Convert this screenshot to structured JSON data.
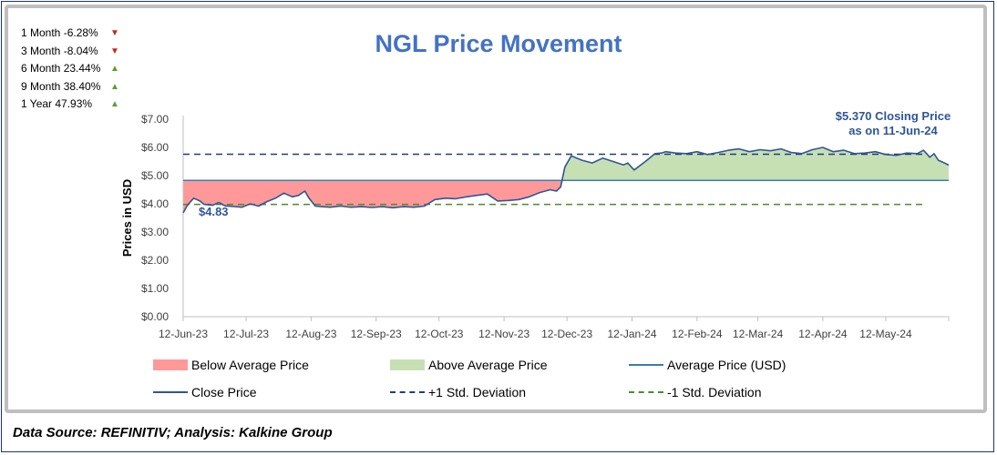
{
  "performance": [
    {
      "label": "1 Month -6.28%",
      "direction": "down"
    },
    {
      "label": "3 Month -8.04%",
      "direction": "down"
    },
    {
      "label": "6 Month 23.44%",
      "direction": "up"
    },
    {
      "label": "9 Month 38.40%",
      "direction": "up"
    },
    {
      "label": "1 Year 47.93%",
      "direction": "up"
    }
  ],
  "arrows": {
    "up": "▲",
    "down": "▼"
  },
  "source": "Data Source: REFINITIV; Analysis: Kalkine Group",
  "colors": {
    "title": "#4472c4",
    "close": "#2f5597",
    "average": "#3a7db5",
    "below": "#ff9999",
    "above": "#c6e0b4",
    "plus_sd": "#1f3e7a",
    "minus_sd": "#4f8a2a",
    "annotation": "#2f5597"
  },
  "chart_data": {
    "type": "line",
    "title": "NGL Price Movement",
    "xlabel": "",
    "ylabel": "Prices in USD",
    "ylim": [
      0,
      7
    ],
    "yticks": [
      0,
      1,
      2,
      3,
      4,
      5,
      6,
      7
    ],
    "ytick_labels": [
      "$0.00",
      "$1.00",
      "$2.00",
      "$3.00",
      "$4.00",
      "$5.00",
      "$6.00",
      "$7.00"
    ],
    "x_range_days": [
      0,
      365
    ],
    "xticks": [
      {
        "day": 0,
        "label": "12-Jun-23"
      },
      {
        "day": 30,
        "label": "12-Jul-23"
      },
      {
        "day": 61,
        "label": "12-Aug-23"
      },
      {
        "day": 92,
        "label": "12-Sep-23"
      },
      {
        "day": 122,
        "label": "12-Oct-23"
      },
      {
        "day": 153,
        "label": "12-Nov-23"
      },
      {
        "day": 183,
        "label": "12-Dec-23"
      },
      {
        "day": 214,
        "label": "12-Jan-24"
      },
      {
        "day": 245,
        "label": "12-Feb-24"
      },
      {
        "day": 274,
        "label": "12-Mar-24"
      },
      {
        "day": 305,
        "label": "12-Apr-24"
      },
      {
        "day": 335,
        "label": "12-May-24"
      }
    ],
    "average": 4.83,
    "plus_sd": 5.76,
    "minus_sd": 3.98,
    "series": [
      {
        "name": "Close Price",
        "x_days": [
          0,
          2,
          5,
          8,
          10,
          14,
          17,
          20,
          25,
          28,
          32,
          36,
          40,
          44,
          48,
          52,
          55,
          58,
          60,
          63,
          66,
          70,
          75,
          80,
          85,
          90,
          95,
          100,
          105,
          110,
          115,
          120,
          125,
          130,
          135,
          140,
          145,
          150,
          155,
          160,
          165,
          170,
          175,
          178,
          180,
          182,
          185,
          190,
          195,
          200,
          205,
          210,
          212,
          215,
          220,
          225,
          228,
          230,
          235,
          240,
          245,
          250,
          255,
          260,
          265,
          270,
          275,
          280,
          285,
          290,
          295,
          300,
          305,
          310,
          315,
          320,
          325,
          330,
          335,
          340,
          345,
          350,
          353,
          356,
          358,
          360,
          363,
          365
        ],
        "values": [
          3.68,
          3.95,
          4.2,
          4.1,
          3.98,
          3.95,
          4.05,
          3.93,
          3.9,
          3.88,
          4.0,
          3.92,
          4.08,
          4.2,
          4.38,
          4.25,
          4.3,
          4.45,
          4.2,
          3.92,
          3.9,
          3.88,
          3.92,
          3.88,
          3.9,
          3.87,
          3.9,
          3.86,
          3.9,
          3.88,
          3.92,
          4.15,
          4.2,
          4.18,
          4.25,
          4.3,
          4.35,
          4.1,
          4.12,
          4.15,
          4.25,
          4.4,
          4.5,
          4.45,
          4.6,
          5.3,
          5.7,
          5.55,
          5.45,
          5.62,
          5.5,
          5.38,
          5.45,
          5.2,
          5.48,
          5.78,
          5.8,
          5.85,
          5.8,
          5.78,
          5.85,
          5.75,
          5.82,
          5.9,
          5.95,
          5.85,
          5.92,
          5.88,
          5.95,
          5.82,
          5.78,
          5.92,
          6.0,
          5.85,
          5.9,
          5.78,
          5.8,
          5.85,
          5.75,
          5.72,
          5.8,
          5.78,
          5.9,
          5.65,
          5.78,
          5.55,
          5.45,
          5.37
        ]
      },
      {
        "name": "Average Price (USD)",
        "value": 4.83
      },
      {
        "name": "+1 Std. Deviation",
        "value": 5.76
      },
      {
        "name": "-1 Std. Deviation",
        "value": 3.98
      }
    ],
    "annotations": {
      "start_price_label": "$4.83",
      "closing_line1": "$5.370 Closing Price",
      "closing_line2": "as on 11-Jun-24"
    },
    "legend": [
      {
        "label": "Below Average Price",
        "kind": "fill-below"
      },
      {
        "label": "Above Average Price",
        "kind": "fill-above"
      },
      {
        "label": "Average Price (USD)",
        "kind": "line-average"
      },
      {
        "label": "Close Price",
        "kind": "line-close"
      },
      {
        "label": "+1 Std. Deviation",
        "kind": "dash-plus"
      },
      {
        "label": "-1 Std. Deviation",
        "kind": "dash-minus"
      }
    ]
  }
}
